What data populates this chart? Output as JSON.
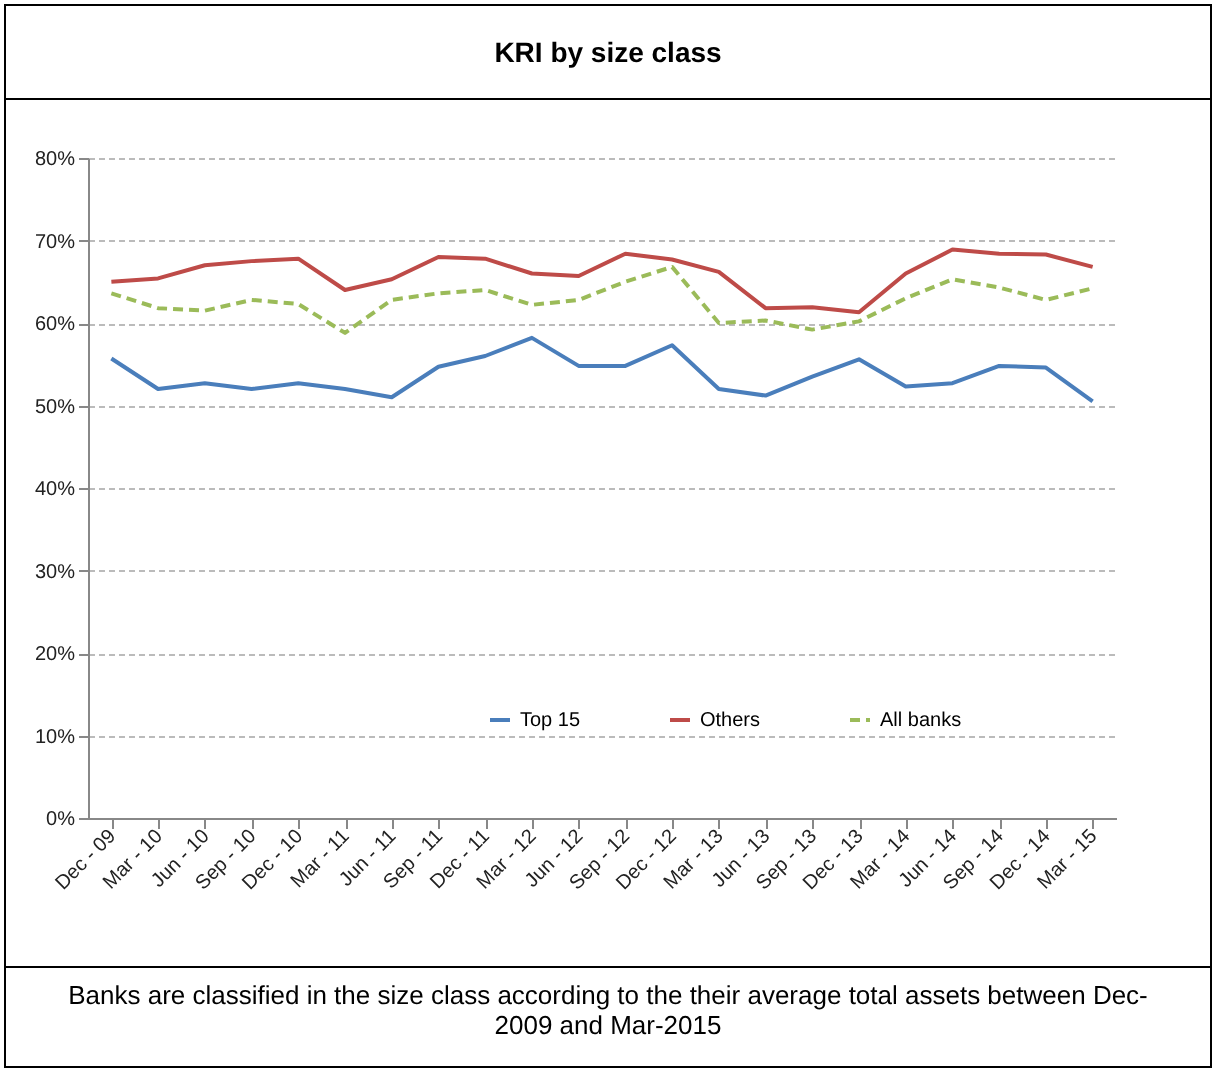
{
  "chart_data": {
    "type": "line",
    "title": "KRI by size class",
    "categories": [
      "Dec - 09",
      "Mar - 10",
      "Jun - 10",
      "Sep - 10",
      "Dec - 10",
      "Mar - 11",
      "Jun - 11",
      "Sep - 11",
      "Dec - 11",
      "Mar - 12",
      "Jun - 12",
      "Sep - 12",
      "Dec - 12",
      "Mar - 13",
      "Jun - 13",
      "Sep - 13",
      "Dec - 13",
      "Mar - 14",
      "Jun - 14",
      "Sep - 14",
      "Dec - 14",
      "Mar - 15"
    ],
    "series": [
      {
        "name": "Top 15",
        "color": "#4a7ebb",
        "line_style": "solid",
        "values": [
          55.7,
          52,
          52.7,
          52,
          52.7,
          52,
          51,
          54.7,
          56,
          58.2,
          54.8,
          54.8,
          57.3,
          52,
          51.2,
          53.5,
          55.6,
          52.3,
          52.7,
          54.8,
          54.6,
          50.5
        ]
      },
      {
        "name": "Others",
        "color": "#be4b48",
        "line_style": "solid",
        "values": [
          65,
          65.4,
          67,
          67.5,
          67.8,
          64,
          65.3,
          68,
          67.8,
          66,
          65.7,
          68.4,
          67.7,
          66.2,
          61.8,
          61.9,
          61.3,
          66,
          68.9,
          68.4,
          68.3,
          66.8
        ]
      },
      {
        "name": "All banks",
        "color": "#9bbb59",
        "line_style": "dashed",
        "values": [
          63.6,
          61.8,
          61.5,
          62.8,
          62.3,
          58.8,
          62.8,
          63.6,
          64,
          62.2,
          62.8,
          65,
          66.8,
          60,
          60.3,
          59.2,
          60.2,
          63,
          65.3,
          64.3,
          62.8,
          64.2
        ]
      }
    ],
    "ylim": [
      0,
      80
    ],
    "yticks": [
      {
        "value": 0,
        "label": "0%"
      },
      {
        "value": 10,
        "label": "10%"
      },
      {
        "value": 20,
        "label": "20%"
      },
      {
        "value": 30,
        "label": "30%"
      },
      {
        "value": 40,
        "label": "40%"
      },
      {
        "value": 50,
        "label": "50%"
      },
      {
        "value": 60,
        "label": "60%"
      },
      {
        "value": 70,
        "label": "70%"
      },
      {
        "value": 80,
        "label": "80%"
      }
    ],
    "grid": "y",
    "legend": "bottom",
    "marker": "none",
    "annotations": [
      "Banks are classified in the size class according to the their average total assets between Dec-2009 and Mar-2015"
    ]
  }
}
